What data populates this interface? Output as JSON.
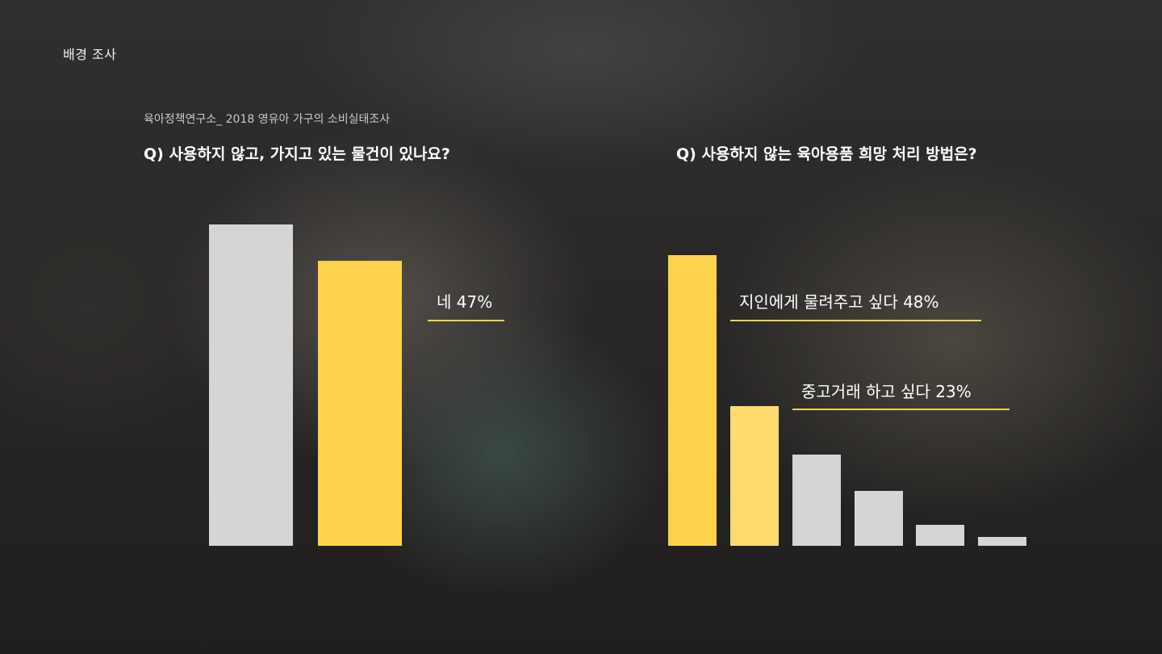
{
  "section_title": "배경 조사",
  "source": "육아정책연구소_ 2018 영유아 가구의 소비실태조사",
  "colors": {
    "accent": "#FFD24D",
    "accent_light": "#FFDB6E",
    "neutral": "#D6D5D5"
  },
  "chart_data": [
    {
      "type": "bar",
      "title": "Q) 사용하지 않고, 가지고 있는 물건이 있나요?",
      "categories": [
        "",
        ""
      ],
      "values": [
        53,
        47
      ],
      "ylim": [
        0,
        100
      ],
      "highlight_index": 1,
      "annotations": [
        {
          "index": 1,
          "label": "네 47%"
        }
      ]
    },
    {
      "type": "bar",
      "title": "Q) 사용하지 않는 육아용품 희망 처리 방법은?",
      "categories": [
        "",
        "",
        "",
        "",
        "",
        ""
      ],
      "values": [
        48,
        23,
        15,
        9,
        3.5,
        1.5
      ],
      "ylim": [
        0,
        100
      ],
      "highlight_indices": [
        0,
        1
      ],
      "annotations": [
        {
          "index": 0,
          "label": "지인에게 물려주고 싶다 48%"
        },
        {
          "index": 1,
          "label": "중고거래 하고 싶다  23%"
        }
      ]
    }
  ]
}
